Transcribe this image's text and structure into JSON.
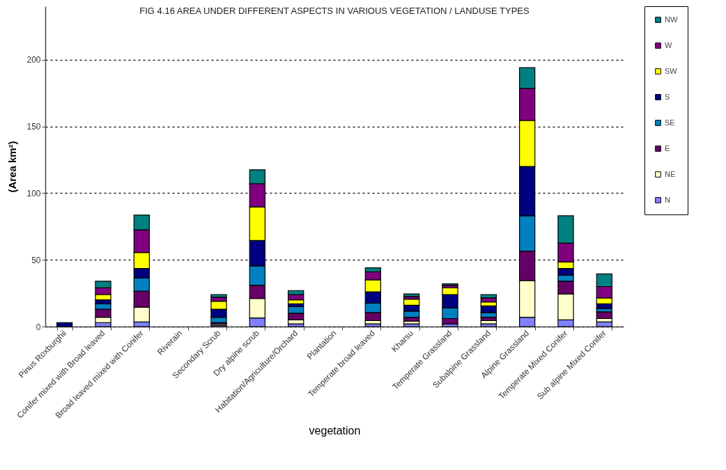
{
  "chart_data": {
    "type": "bar",
    "stacked": true,
    "title": "FIG 4.16 AREA UNDER DIFFERENT ASPECTS IN VARIOUS VEGETATION / LANDUSE TYPES",
    "xlabel": "vegetation",
    "ylabel": "(Area km²)",
    "categories": [
      "Pinus Roxburghii",
      "Conifer mixed with Broad leaved",
      "Broad  leaved mixed with Conifer",
      "Riverain",
      "Secondary Scrub",
      "Dry alpine scrub",
      "Habitation/Agriculture/Orchard",
      "Plantation",
      "Temperate broad leaved",
      "Kharsu",
      "Temperate Grassland",
      "Subalpine Grassland",
      "Alpine Grassland",
      "Temperate Mixed Conifer",
      "Sub alpine Mixed Conifer"
    ],
    "series": [
      {
        "name": "N",
        "color": "#8080ff",
        "values": [
          null,
          3,
          3.5,
          null,
          1,
          6.5,
          2,
          null,
          2,
          2,
          2,
          2,
          7,
          5,
          3.5
        ]
      },
      {
        "name": "NE",
        "color": "#ffffcc",
        "values": [
          null,
          4,
          11,
          null,
          1,
          14.5,
          3,
          null,
          2.5,
          2,
          null,
          2.5,
          27.5,
          19.5,
          2.5
        ]
      },
      {
        "name": "E",
        "color": "#660066",
        "values": [
          null,
          6,
          12,
          null,
          1,
          10,
          5,
          null,
          6,
          3,
          4,
          2.5,
          22,
          9.5,
          5
        ]
      },
      {
        "name": "SE",
        "color": "#0080c0",
        "values": [
          null,
          4,
          10,
          null,
          4,
          14.5,
          5,
          null,
          7,
          4.5,
          8,
          3.5,
          26.5,
          4.5,
          2.5
        ]
      },
      {
        "name": "S",
        "color": "#000080",
        "values": [
          3,
          3,
          7,
          null,
          6,
          19,
          2,
          null,
          8.5,
          4.5,
          10,
          5,
          37,
          5,
          3.5
        ]
      },
      {
        "name": "SW",
        "color": "#ffff00",
        "values": [
          null,
          4,
          12,
          null,
          6,
          25,
          3,
          null,
          9,
          4.5,
          5,
          3,
          34.5,
          5,
          4.5
        ]
      },
      {
        "name": "W",
        "color": "#800080",
        "values": [
          null,
          5,
          17,
          null,
          3,
          17.5,
          4,
          null,
          6,
          2,
          2,
          3,
          24,
          14,
          8.5
        ]
      },
      {
        "name": "NW",
        "color": "#008080",
        "values": [
          null,
          5,
          11,
          null,
          2,
          10.5,
          3,
          null,
          3,
          2,
          1,
          2.5,
          15.5,
          20.5,
          9.5
        ]
      }
    ],
    "ylim": [
      0,
      240
    ],
    "yticks": [
      0,
      50,
      100,
      150,
      200
    ],
    "grid": "y",
    "legend": "right"
  }
}
